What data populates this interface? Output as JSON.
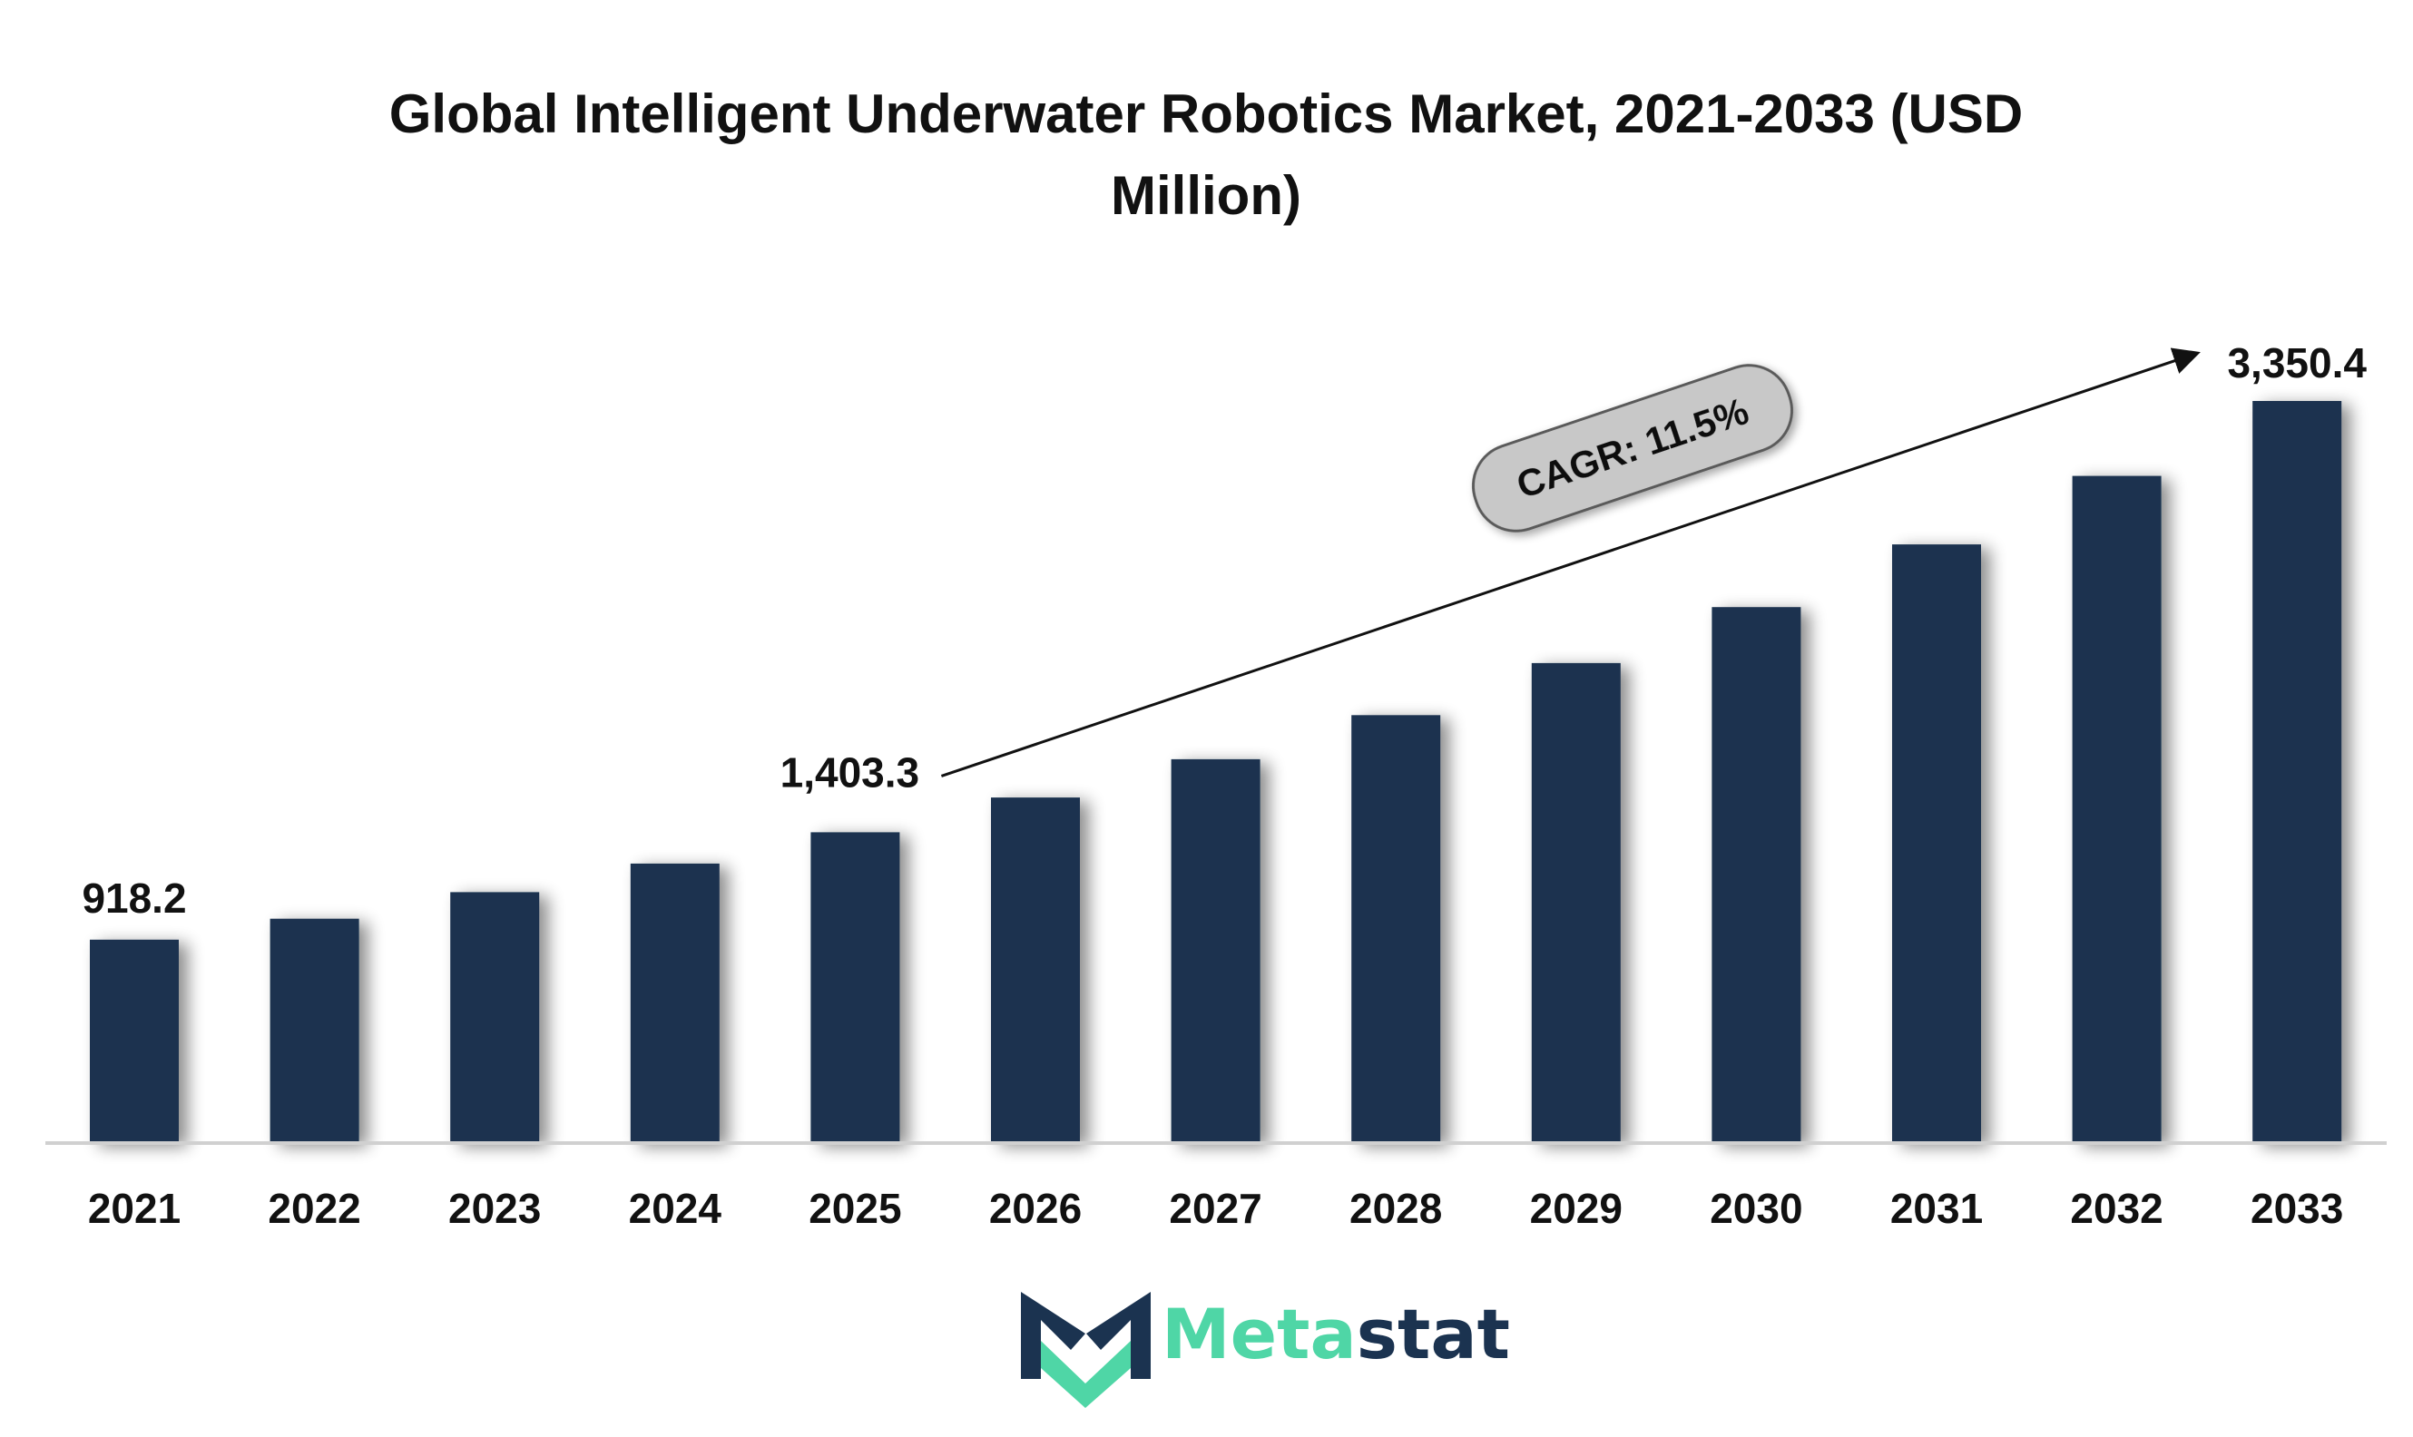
{
  "colors": {
    "bar": "#1b3350",
    "text": "#111111",
    "axis": "#d0d0d0",
    "cagr_fill": "#c8c8c8",
    "cagr_stroke": "#5a5a5a",
    "logo_dark": "#1b3350",
    "logo_accent": "#4fd6a6"
  },
  "chart_data": {
    "type": "bar",
    "title_lines": [
      "Global Intelligent Underwater Robotics Market, 2021-2033 (USD",
      "Million)"
    ],
    "categories": [
      "2021",
      "2022",
      "2023",
      "2024",
      "2025",
      "2026",
      "2027",
      "2028",
      "2029",
      "2030",
      "2031",
      "2032",
      "2033"
    ],
    "values": [
      918.2,
      1013,
      1133,
      1262,
      1403.3,
      1560,
      1733,
      1932,
      2167,
      2420,
      2703,
      3012,
      3350.4
    ],
    "data_labels": [
      {
        "index": 0,
        "text": "918.2"
      },
      {
        "index": 4,
        "text": "1,403.3"
      },
      {
        "index": 12,
        "text": "3,350.4"
      }
    ],
    "annotation": {
      "text": "CAGR: 11.5%",
      "from_index": 4,
      "to_index": 12
    },
    "xlabel": "",
    "ylabel": "",
    "ylim": [
      0,
      3600
    ],
    "grid": false,
    "legend": "none"
  },
  "brand": {
    "name_part1": "Meta",
    "name_part2": "stat",
    "icon": "metastat-m-logo-icon"
  }
}
